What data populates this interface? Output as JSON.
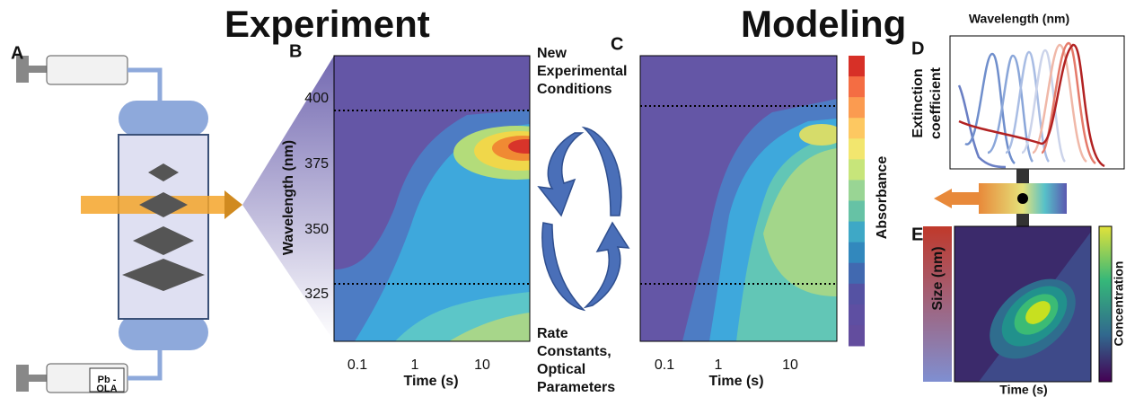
{
  "headings": {
    "experiment": "Experiment",
    "modeling": "Modeling"
  },
  "panels": {
    "a": "A",
    "b": "B",
    "c": "C",
    "d": "D",
    "e": "E"
  },
  "syringe_label": [
    "Pb -",
    "OLA"
  ],
  "loop": {
    "top": [
      "New",
      "Experimental",
      "Conditions"
    ],
    "bottom": [
      "Rate",
      "Constants,",
      "Optical",
      "Parameters"
    ]
  },
  "experiment_plot": {
    "y_label": "Wavelength (nm)",
    "x_label": "Time (s)",
    "y_ticks": [
      "400",
      "375",
      "350",
      "325"
    ],
    "x_ticks": [
      "0.1",
      "1",
      "10"
    ]
  },
  "model_plot": {
    "x_label": "Time (s)",
    "x_ticks": [
      "0.1",
      "1",
      "10"
    ],
    "colorbar_label": "Absorbance"
  },
  "spectra": {
    "title": "Wavelength (nm)",
    "y_label": [
      "Extinction",
      "coefficient"
    ]
  },
  "size_map": {
    "y_label": "Size (nm)",
    "x_label": "Time (s)",
    "colorbar_label": "Concentration"
  }
}
